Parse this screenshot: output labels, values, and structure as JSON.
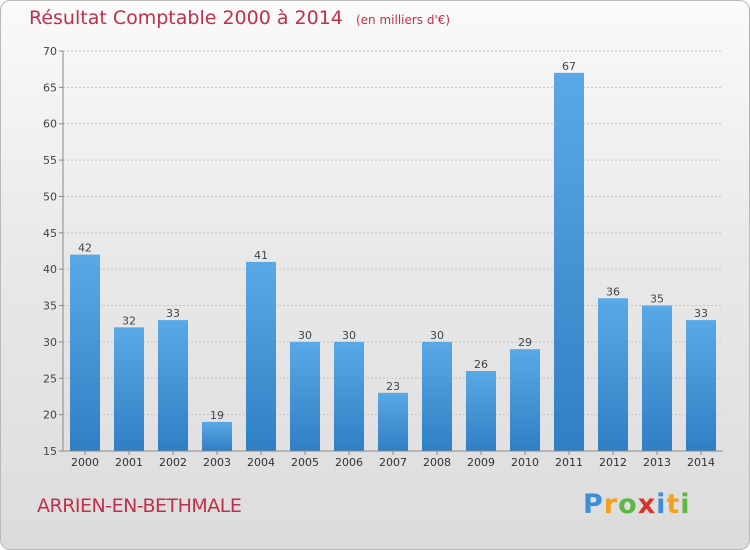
{
  "title": "Résultat Comptable 2000 à 2014",
  "subtitle": "(en milliers d'€)",
  "commune": "ARRIEN-EN-BETHMALE",
  "logo": {
    "text": "Proxiti"
  },
  "colors": {
    "bar_light": "#5aa9e6",
    "bar_dark": "#2f7fc4",
    "title": "#c0304a"
  },
  "chart_data": {
    "type": "bar",
    "categories": [
      "2000",
      "2001",
      "2002",
      "2003",
      "2004",
      "2005",
      "2006",
      "2007",
      "2008",
      "2009",
      "2010",
      "2011",
      "2012",
      "2013",
      "2014"
    ],
    "values": [
      42,
      32,
      33,
      19,
      41,
      30,
      30,
      23,
      30,
      26,
      29,
      67,
      36,
      35,
      33
    ],
    "ylim": [
      15,
      70
    ],
    "yticks": [
      15,
      20,
      25,
      30,
      35,
      40,
      45,
      50,
      55,
      60,
      65,
      70
    ],
    "grid": true,
    "data_labels": true
  }
}
